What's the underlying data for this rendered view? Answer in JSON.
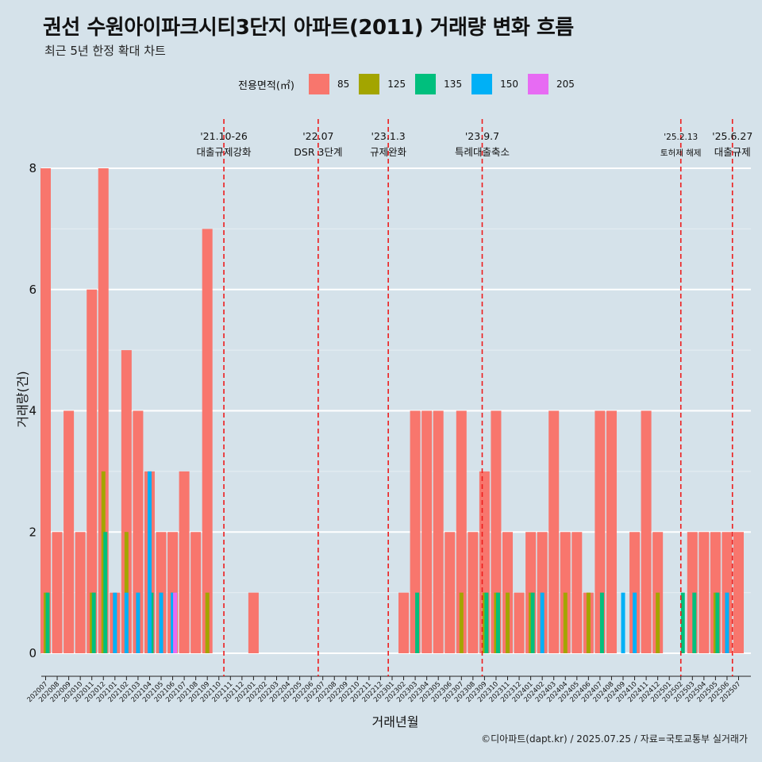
{
  "title": "권선 수원아이파크시티3단지 아파트(2011) 거래량 변화 흐름",
  "subtitle": "최근 5년 한정 확대 차트",
  "caption": "©디아파트(dapt.kr) / 2025.07.25 / 자료=국토교통부 실거래가",
  "legend": {
    "title": "전용면적(㎡)",
    "items": [
      {
        "label": "85",
        "color": "#F8766D"
      },
      {
        "label": "125",
        "color": "#A3A500"
      },
      {
        "label": "135",
        "color": "#00BF7D"
      },
      {
        "label": "150",
        "color": "#00B0F6"
      },
      {
        "label": "205",
        "color": "#E76BF3"
      }
    ]
  },
  "chart_data": {
    "type": "bar",
    "xlabel": "거래년월",
    "ylabel": "거래량(건)",
    "ylim": [
      0,
      8
    ],
    "yticks": [
      0,
      2,
      4,
      6,
      8
    ],
    "categories": [
      "202007",
      "202008",
      "202009",
      "202010",
      "202011",
      "202012",
      "202101",
      "202102",
      "202103",
      "202104",
      "202105",
      "202106",
      "202107",
      "202108",
      "202109",
      "202110",
      "202111",
      "202112",
      "202201",
      "202202",
      "202203",
      "202204",
      "202205",
      "202206",
      "202207",
      "202208",
      "202209",
      "202210",
      "202211",
      "202212",
      "202301",
      "202302",
      "202303",
      "202304",
      "202305",
      "202306",
      "202307",
      "202308",
      "202309",
      "202310",
      "202311",
      "202312",
      "202401",
      "202402",
      "202403",
      "202404",
      "202405",
      "202406",
      "202407",
      "202408",
      "202409",
      "202410",
      "202411",
      "202412",
      "202501",
      "202502",
      "202503",
      "202504",
      "202505",
      "202506",
      "202507"
    ],
    "series": [
      {
        "name": "85",
        "color": "#F8766D",
        "values": [
          8,
          2,
          4,
          2,
          6,
          8,
          1,
          5,
          4,
          3,
          2,
          2,
          3,
          2,
          7,
          0,
          0,
          0,
          1,
          0,
          0,
          0,
          0,
          0,
          0,
          0,
          0,
          0,
          0,
          0,
          0,
          1,
          4,
          4,
          4,
          2,
          4,
          2,
          3,
          4,
          2,
          1,
          2,
          2,
          4,
          2,
          2,
          1,
          4,
          4,
          0,
          2,
          4,
          2,
          0,
          0,
          2,
          2,
          2,
          2,
          2
        ]
      },
      {
        "name": "125",
        "color": "#A3A500",
        "values": [
          1,
          0,
          0,
          0,
          1,
          3,
          0,
          2,
          0,
          0,
          0,
          1,
          0,
          0,
          1,
          0,
          0,
          0,
          0,
          0,
          0,
          0,
          0,
          0,
          0,
          0,
          0,
          0,
          0,
          0,
          0,
          0,
          0,
          0,
          0,
          0,
          1,
          0,
          1,
          1,
          1,
          0,
          1,
          0,
          0,
          1,
          0,
          1,
          0,
          0,
          0,
          0,
          0,
          1,
          0,
          0,
          0,
          0,
          1,
          0,
          0
        ]
      },
      {
        "name": "135",
        "color": "#00BF7D",
        "values": [
          1,
          0,
          0,
          0,
          1,
          2,
          0,
          0,
          0,
          1,
          0,
          0,
          0,
          0,
          0,
          0,
          0,
          0,
          0,
          0,
          0,
          0,
          0,
          0,
          0,
          0,
          0,
          0,
          0,
          0,
          0,
          0,
          1,
          0,
          0,
          0,
          0,
          0,
          1,
          1,
          0,
          0,
          1,
          0,
          0,
          0,
          0,
          0,
          1,
          0,
          0,
          0,
          0,
          0,
          0,
          1,
          1,
          0,
          1,
          0,
          0
        ]
      },
      {
        "name": "150",
        "color": "#00B0F6",
        "values": [
          0,
          0,
          0,
          0,
          0,
          0,
          1,
          1,
          1,
          3,
          1,
          1,
          0,
          0,
          0,
          0,
          0,
          0,
          0,
          0,
          0,
          0,
          0,
          0,
          0,
          0,
          0,
          0,
          0,
          0,
          0,
          0,
          0,
          0,
          0,
          0,
          0,
          0,
          0,
          0,
          0,
          0,
          0,
          1,
          0,
          0,
          0,
          0,
          0,
          0,
          1,
          1,
          0,
          0,
          0,
          0,
          0,
          0,
          0,
          1,
          0
        ]
      },
      {
        "name": "205",
        "color": "#E76BF3",
        "values": [
          0,
          0,
          0,
          0,
          0,
          0,
          0,
          0,
          0,
          0,
          0,
          1,
          0,
          0,
          0,
          0,
          0,
          0,
          0,
          0,
          0,
          0,
          0,
          0,
          0,
          0,
          0,
          0,
          0,
          0,
          0,
          0,
          0,
          0,
          0,
          0,
          0,
          0,
          0,
          0,
          0,
          0,
          0,
          0,
          0,
          0,
          0,
          0,
          0,
          0,
          0,
          0,
          0,
          0,
          0,
          0,
          0,
          0,
          0,
          0,
          0
        ]
      }
    ],
    "events": [
      {
        "date": "'21.10-26",
        "label": "대출규제강화",
        "month": "202110",
        "day": 26
      },
      {
        "date": "'22.07",
        "label": "DSR 3단계",
        "month": "202207",
        "day": 1
      },
      {
        "date": "'23.1.3",
        "label": "규제완화",
        "month": "202301",
        "day": 3
      },
      {
        "date": "'23.9.7",
        "label": "특례대출축소",
        "month": "202309",
        "day": 7
      },
      {
        "date": "'25.2.13",
        "label": "토허제 해제",
        "month": "202502",
        "day": 13
      },
      {
        "date": "'25.6.27",
        "label": "대출규제",
        "month": "202506",
        "day": 27
      }
    ],
    "grid": true,
    "legend_position": "top"
  }
}
